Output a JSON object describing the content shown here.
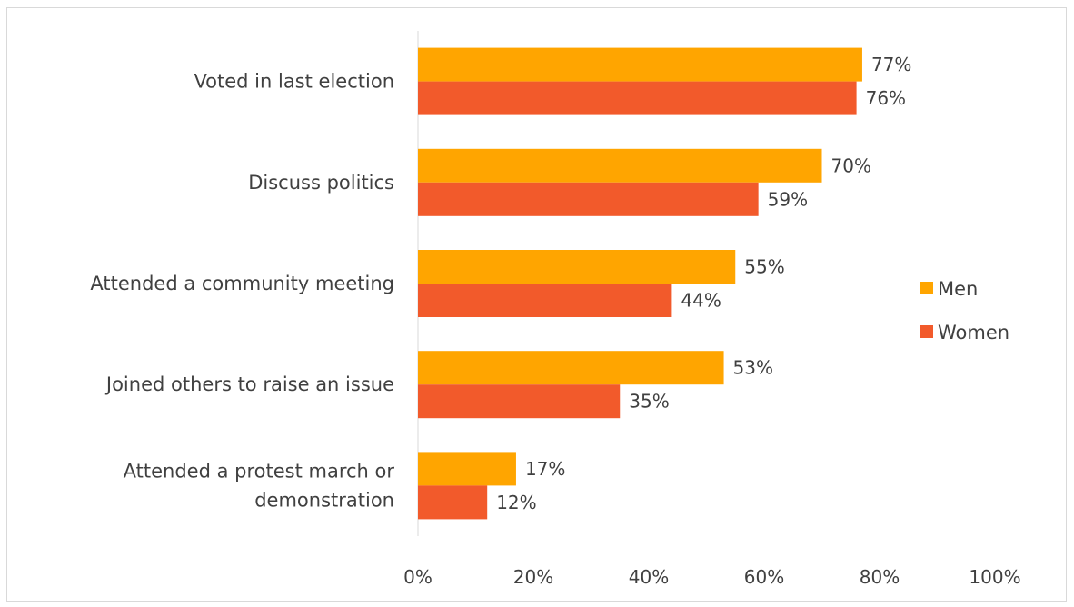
{
  "chart_data": {
    "type": "bar",
    "orientation": "horizontal",
    "title": "",
    "xlabel": "",
    "ylabel": "",
    "categories": [
      "Voted in last election",
      "Discuss politics",
      "Attended a community meeting",
      "Joined others to raise an issue",
      "Attended a protest march or demonstration"
    ],
    "series": [
      {
        "name": "Men",
        "color": "#FFA500",
        "values": [
          77,
          70,
          55,
          53,
          17
        ],
        "labels": [
          "77%",
          "70%",
          "55%",
          "53%",
          "17%"
        ]
      },
      {
        "name": "Women",
        "color": "#F25A2B",
        "values": [
          76,
          59,
          44,
          35,
          12
        ],
        "labels": [
          "76%",
          "59%",
          "44%",
          "35%",
          "12%"
        ]
      }
    ],
    "xlim": [
      0,
      100
    ],
    "x_ticks": [
      0,
      20,
      40,
      60,
      80,
      100
    ],
    "x_tick_labels": [
      "0%",
      "20%",
      "40%",
      "60%",
      "80%",
      "100%"
    ],
    "grid": false,
    "legend_position": "right"
  }
}
